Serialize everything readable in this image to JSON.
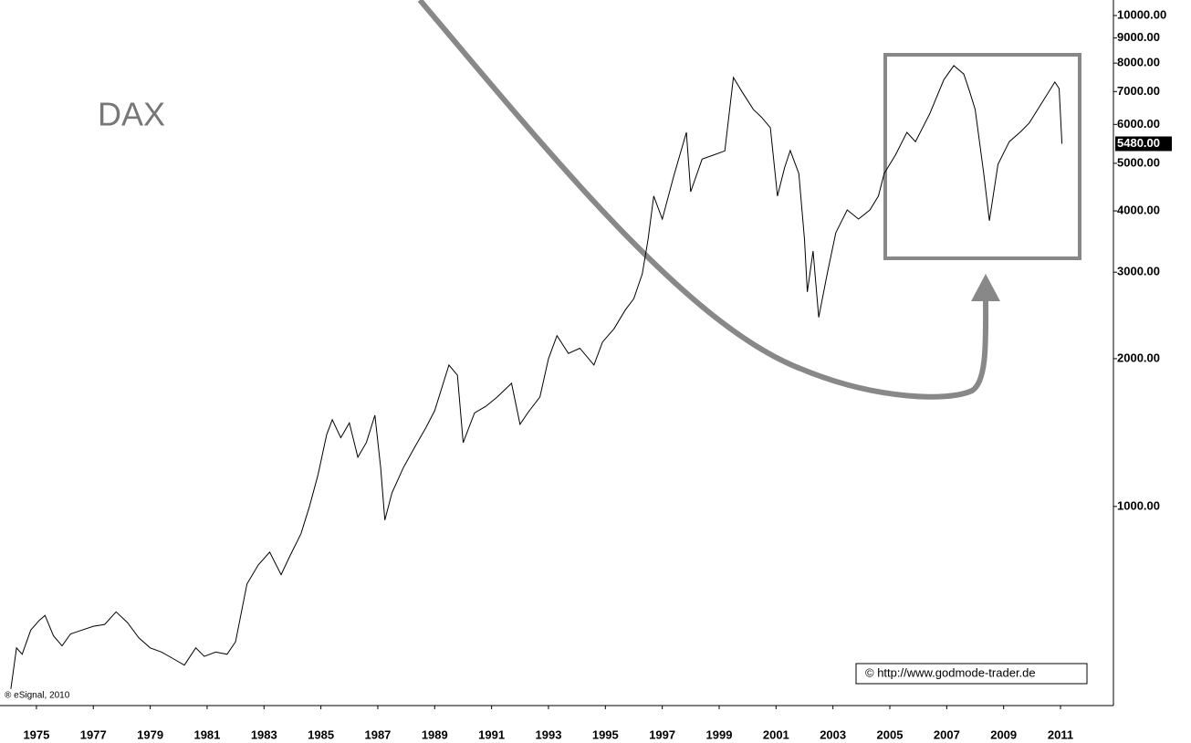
{
  "chart_data": {
    "type": "line",
    "title": "DAX",
    "source": "® eSignal, 2010",
    "credit": "© http://www.godmode-trader.de",
    "log_scale": true,
    "color": "#000000",
    "xlim": [
      1974.04,
      2012.86
    ],
    "xticks": [
      1975,
      1977,
      1979,
      1981,
      1983,
      1985,
      1987,
      1989,
      1991,
      1993,
      1995,
      1997,
      1999,
      2001,
      2003,
      2005,
      2007,
      2009,
      2011
    ],
    "ylim": [
      393,
      10755
    ],
    "yticks": [
      {
        "value": 1000,
        "label": "1000.00"
      },
      {
        "value": 2000,
        "label": "2000.00"
      },
      {
        "value": 3000,
        "label": "3000.00"
      },
      {
        "value": 4000,
        "label": "4000.00"
      },
      {
        "value": 5000,
        "label": "5000.00"
      },
      {
        "value": 6000,
        "label": "6000.00"
      },
      {
        "value": 7000,
        "label": "7000.00"
      },
      {
        "value": 8000,
        "label": "8000.00"
      },
      {
        "value": 9000,
        "label": "9000.00"
      },
      {
        "value": 10000,
        "label": "10000.00"
      }
    ],
    "last_value": {
      "value": 5480,
      "label": "5480.00"
    },
    "x": [
      1974.1,
      1974.3,
      1974.5,
      1974.8,
      1975.1,
      1975.3,
      1975.6,
      1975.9,
      1976.2,
      1976.6,
      1977.0,
      1977.4,
      1977.8,
      1978.2,
      1978.6,
      1979.0,
      1979.4,
      1979.8,
      1980.2,
      1980.6,
      1980.9,
      1981.3,
      1981.7,
      1982.0,
      1982.4,
      1982.8,
      1983.2,
      1983.6,
      1983.9,
      1984.3,
      1984.6,
      1984.9,
      1985.2,
      1985.4,
      1985.7,
      1986.0,
      1986.3,
      1986.6,
      1986.9,
      1987.1,
      1987.25,
      1987.5,
      1987.9,
      1988.3,
      1988.7,
      1989.0,
      1989.5,
      1989.8,
      1990.0,
      1990.4,
      1990.8,
      1991.2,
      1991.7,
      1992.0,
      1992.3,
      1992.7,
      1993.0,
      1993.3,
      1993.7,
      1994.1,
      1994.6,
      1994.9,
      1995.3,
      1995.7,
      1996.0,
      1996.3,
      1996.5,
      1996.7,
      1997.0,
      1997.4,
      1997.85,
      1998.0,
      1998.4,
      1998.8,
      1999.2,
      1999.5,
      1999.8,
      2000.2,
      2000.5,
      2000.8,
      2001.05,
      2001.3,
      2001.5,
      2001.8,
      2002.0,
      2002.1,
      2002.3,
      2002.5,
      2002.8,
      2003.1,
      2003.5,
      2003.9,
      2004.3,
      2004.6,
      2004.8,
      2005.2,
      2005.6,
      2005.9,
      2006.4,
      2006.9,
      2007.25,
      2007.6,
      2007.8,
      2008.0,
      2008.3,
      2008.5,
      2008.8,
      2009.2,
      2009.6,
      2009.9,
      2010.3,
      2010.8,
      2010.95,
      2011.05
    ],
    "values": [
      425,
      515,
      500,
      560,
      586,
      600,
      545,
      520,
      550,
      560,
      570,
      575,
      610,
      580,
      540,
      515,
      505,
      490,
      475,
      515,
      495,
      505,
      500,
      530,
      695,
      760,
      807,
      726,
      790,
      880,
      1000,
      1161,
      1400,
      1502,
      1380,
      1480,
      1260,
      1350,
      1534,
      1200,
      938,
      1066,
      1200,
      1321,
      1450,
      1567,
      1941,
      1850,
      1349,
      1550,
      1600,
      1671,
      1782,
      1470,
      1560,
      1671,
      2000,
      2228,
      2050,
      2100,
      1941,
      2162,
      2300,
      2512,
      2650,
      2978,
      3500,
      4287,
      3850,
      4700,
      5780,
      4375,
      5100,
      5196,
      5300,
      7476,
      7000,
      6440,
      6200,
      5909,
      4287,
      4900,
      5308,
      4766,
      3500,
      2735,
      3313,
      2427,
      2978,
      3610,
      4018,
      3850,
      4018,
      4287,
      4766,
      5200,
      5780,
      5533,
      6300,
      7400,
      7907,
      7600,
      7014,
      6440,
      4766,
      3820,
      4977,
      5533,
      5800,
      6039,
      6577,
      7318,
      7100,
      5480
    ]
  }
}
